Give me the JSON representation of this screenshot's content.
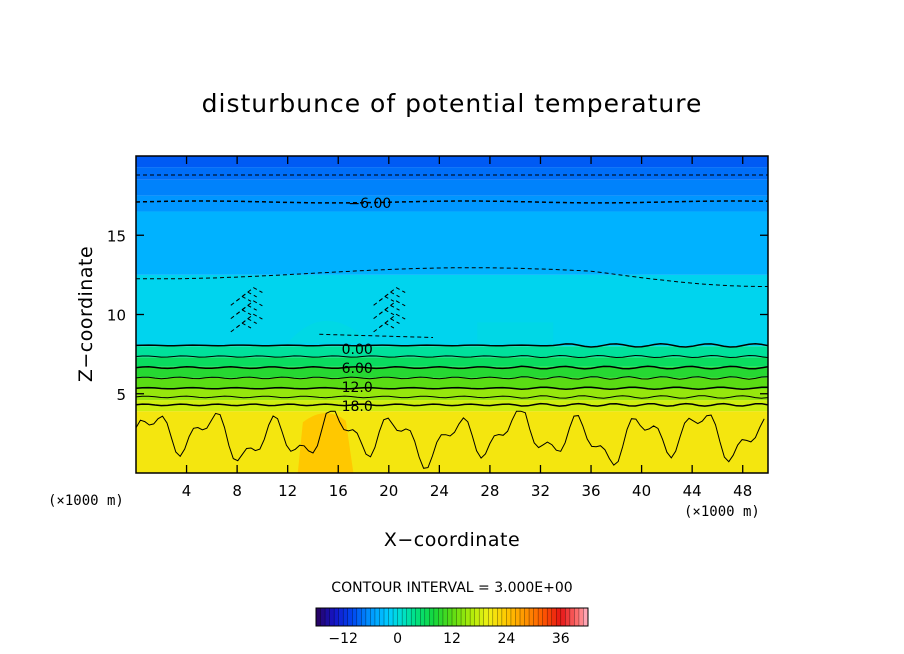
{
  "chart_data": {
    "type": "heatmap",
    "title": "disturbunce of potential temperature",
    "xlabel": "X−coordinate",
    "ylabel": "Z−coordinate",
    "x_unit": "(×1000 m)",
    "z_unit": "(×1000 m)",
    "xlim": [
      0,
      50
    ],
    "ylim": [
      0,
      20
    ],
    "x_ticks": [
      "4",
      "8",
      "12",
      "16",
      "20",
      "24",
      "28",
      "32",
      "36",
      "40",
      "44",
      "48"
    ],
    "y_ticks": [
      "5",
      "10",
      "15"
    ],
    "contour_interval_text": "CONTOUR INTERVAL = 3.000E+00",
    "contour_labels": [
      {
        "text": "−6.00",
        "x": 18.5,
        "z": 17.1
      },
      {
        "text": "0.00",
        "x": 17.5,
        "z": 7.9
      },
      {
        "text": "6.00",
        "x": 17.5,
        "z": 6.7
      },
      {
        "text": "12.0",
        "x": 17.5,
        "z": 5.5
      },
      {
        "text": "18.0",
        "x": 17.5,
        "z": 4.3
      }
    ],
    "vertical_profile": [
      {
        "z_from": 0.0,
        "z_to": 3.9,
        "value": 21
      },
      {
        "z_from": 3.9,
        "z_to": 4.6,
        "value": 18
      },
      {
        "z_from": 4.6,
        "z_to": 5.3,
        "value": 15
      },
      {
        "z_from": 5.3,
        "z_to": 6.0,
        "value": 12
      },
      {
        "z_from": 6.0,
        "z_to": 6.7,
        "value": 9
      },
      {
        "z_from": 6.7,
        "z_to": 7.3,
        "value": 6
      },
      {
        "z_from": 7.3,
        "z_to": 8.0,
        "value": 3
      },
      {
        "z_from": 8.0,
        "z_to": 12.5,
        "value": -1
      },
      {
        "z_from": 12.5,
        "z_to": 16.5,
        "value": -4
      },
      {
        "z_from": 16.5,
        "z_to": 17.5,
        "value": -6
      },
      {
        "z_from": 17.5,
        "z_to": 18.5,
        "value": -7
      },
      {
        "z_from": 18.5,
        "z_to": 19.3,
        "value": -8
      },
      {
        "z_from": 19.3,
        "z_to": 20.0,
        "value": -9
      }
    ],
    "colorbar": {
      "min": -18,
      "max": 42,
      "ticks": [
        {
          "label": "−12",
          "value": -12
        },
        {
          "label": "0",
          "value": 0
        },
        {
          "label": "12",
          "value": 12
        },
        {
          "label": "24",
          "value": 24
        },
        {
          "label": "36",
          "value": 36
        }
      ]
    },
    "grid": false
  }
}
